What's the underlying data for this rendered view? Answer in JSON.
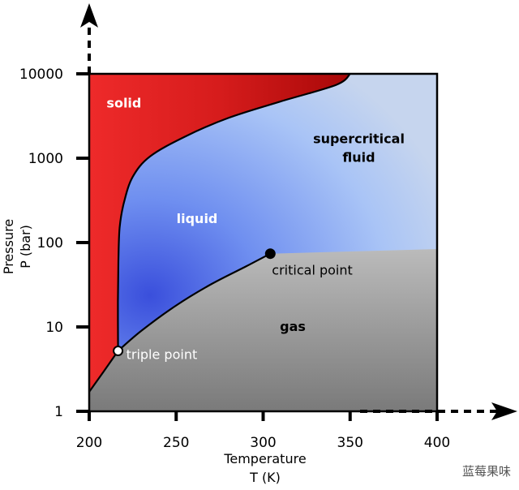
{
  "chart_data": {
    "type": "phase-diagram",
    "title": "",
    "xlabel": "Temperature",
    "xunit": "T (K)",
    "ylabel": "Pressure",
    "yunit": "P (bar)",
    "xlim": [
      200,
      400
    ],
    "ylim": [
      1,
      10000
    ],
    "yscale": "log",
    "x_ticks": [
      200,
      250,
      300,
      350,
      400
    ],
    "y_ticks": [
      1,
      10,
      100,
      1000,
      10000
    ],
    "y_tick_labels": [
      "1",
      "10",
      "100",
      "1000",
      "10000"
    ],
    "regions": [
      {
        "name": "solid",
        "label": "solid",
        "label_at": [
          220,
          4000
        ],
        "color": "#ffffff"
      },
      {
        "name": "liquid",
        "label": "liquid",
        "label_at": [
          262,
          170
        ],
        "color": "#ffffff"
      },
      {
        "name": "supercritical",
        "label": "supercritical fluid",
        "label_lines": [
          "supercritical",
          "fluid"
        ],
        "label_at": [
          355,
          1500
        ],
        "color": "#000000"
      },
      {
        "name": "gas",
        "label": "gas",
        "label_at": [
          317,
          9
        ],
        "color": "#000000"
      }
    ],
    "points": [
      {
        "name": "triple-point",
        "label": "triple point",
        "x": 216.6,
        "y": 5.2,
        "fill": "#ffffff",
        "label_color": "#ffffff"
      },
      {
        "name": "critical-point",
        "label": "critical point",
        "x": 304.1,
        "y": 73.8,
        "fill": "#000000",
        "label_color": "#000000"
      }
    ],
    "boundaries": {
      "sublimation": [
        [
          200,
          1.7
        ],
        [
          208,
          2.9
        ],
        [
          216.6,
          5.2
        ]
      ],
      "melting": [
        [
          216.6,
          5.2
        ],
        [
          216.5,
          20
        ],
        [
          216.8,
          60
        ],
        [
          217.5,
          150
        ],
        [
          220,
          300
        ],
        [
          225,
          600
        ],
        [
          235,
          1050
        ],
        [
          255,
          1800
        ],
        [
          280,
          3000
        ],
        [
          310,
          4700
        ],
        [
          342,
          7400
        ],
        [
          350,
          10000
        ]
      ],
      "vaporization": [
        [
          216.6,
          5.2
        ],
        [
          230,
          9
        ],
        [
          250,
          18
        ],
        [
          270,
          32
        ],
        [
          290,
          52
        ],
        [
          304.1,
          73.8
        ]
      ]
    },
    "colors": {
      "solid": "#e21f1f",
      "solid_dark": "#b80a0a",
      "liquid": "#4b61e4",
      "supercritical": "#a9c6f5",
      "gas_top": "#d3d3d3",
      "gas_bottom": "#7a7a7a"
    }
  },
  "watermark": "蓝莓果味"
}
